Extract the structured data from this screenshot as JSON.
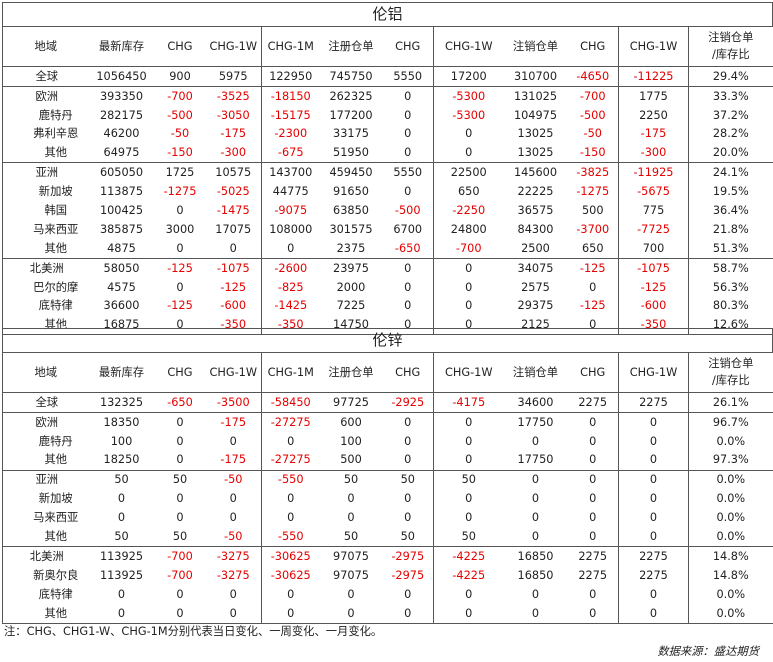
{
  "headers": {
    "region": "地域",
    "inventory": "最新库存",
    "chg": "CHG",
    "chg1w": "CHG-1W",
    "chg1m": "CHG-1M",
    "registered": "注册仓单",
    "cancelled": "注销仓单",
    "ratio_line1": "注销仓单",
    "ratio_line2": "/库存比"
  },
  "sections": [
    {
      "title": "伦铝",
      "rows": [
        {
          "region": "全球",
          "level": "top",
          "inv": "1056450",
          "chg": "900",
          "chg1w": "5975",
          "chg1m": "122950",
          "reg": "745750",
          "reg_chg": "5550",
          "reg_chg1w": "17200",
          "can": "310700",
          "can_chg": "-4650",
          "can_chg1w": "-11225",
          "ratio": "29.4%"
        },
        {
          "region": "欧洲",
          "level": "top",
          "inv": "393350",
          "chg": "-700",
          "chg1w": "-3525",
          "chg1m": "-18150",
          "reg": "262325",
          "reg_chg": "0",
          "reg_chg1w": "-5300",
          "can": "131025",
          "can_chg": "-700",
          "can_chg1w": "1775",
          "ratio": "33.3%"
        },
        {
          "region": "鹿特丹",
          "level": "sub",
          "inv": "282175",
          "chg": "-500",
          "chg1w": "-3050",
          "chg1m": "-15175",
          "reg": "177200",
          "reg_chg": "0",
          "reg_chg1w": "-5300",
          "can": "104975",
          "can_chg": "-500",
          "can_chg1w": "2250",
          "ratio": "37.2%"
        },
        {
          "region": "弗利辛恩",
          "level": "sub",
          "inv": "46200",
          "chg": "-50",
          "chg1w": "-175",
          "chg1m": "-2300",
          "reg": "33175",
          "reg_chg": "0",
          "reg_chg1w": "0",
          "can": "13025",
          "can_chg": "-50",
          "can_chg1w": "-175",
          "ratio": "28.2%"
        },
        {
          "region": "其他",
          "level": "sub",
          "inv": "64975",
          "chg": "-150",
          "chg1w": "-300",
          "chg1m": "-675",
          "reg": "51950",
          "reg_chg": "0",
          "reg_chg1w": "0",
          "can": "13025",
          "can_chg": "-150",
          "can_chg1w": "-300",
          "ratio": "20.0%"
        },
        {
          "region": "亚洲",
          "level": "top",
          "inv": "605050",
          "chg": "1725",
          "chg1w": "10575",
          "chg1m": "143700",
          "reg": "459450",
          "reg_chg": "5550",
          "reg_chg1w": "22500",
          "can": "145600",
          "can_chg": "-3825",
          "can_chg1w": "-11925",
          "ratio": "24.1%"
        },
        {
          "region": "新加坡",
          "level": "sub",
          "inv": "113875",
          "chg": "-1275",
          "chg1w": "-5025",
          "chg1m": "44775",
          "reg": "91650",
          "reg_chg": "0",
          "reg_chg1w": "650",
          "can": "22225",
          "can_chg": "-1275",
          "can_chg1w": "-5675",
          "ratio": "19.5%"
        },
        {
          "region": "韩国",
          "level": "sub",
          "inv": "100425",
          "chg": "0",
          "chg1w": "-1475",
          "chg1m": "-9075",
          "reg": "63850",
          "reg_chg": "-500",
          "reg_chg1w": "-2250",
          "can": "36575",
          "can_chg": "500",
          "can_chg1w": "775",
          "ratio": "36.4%"
        },
        {
          "region": "马来西亚",
          "level": "sub",
          "inv": "385875",
          "chg": "3000",
          "chg1w": "17075",
          "chg1m": "108000",
          "reg": "301575",
          "reg_chg": "6700",
          "reg_chg1w": "24800",
          "can": "84300",
          "can_chg": "-3700",
          "can_chg1w": "-7725",
          "ratio": "21.8%"
        },
        {
          "region": "其他",
          "level": "sub",
          "inv": "4875",
          "chg": "0",
          "chg1w": "0",
          "chg1m": "0",
          "reg": "2375",
          "reg_chg": "-650",
          "reg_chg1w": "-700",
          "can": "2500",
          "can_chg": "650",
          "can_chg1w": "700",
          "ratio": "51.3%"
        },
        {
          "region": "北美洲",
          "level": "top",
          "inv": "58050",
          "chg": "-125",
          "chg1w": "-1075",
          "chg1m": "-2600",
          "reg": "23975",
          "reg_chg": "0",
          "reg_chg1w": "0",
          "can": "34075",
          "can_chg": "-125",
          "can_chg1w": "-1075",
          "ratio": "58.7%"
        },
        {
          "region": "巴尔的摩",
          "level": "sub",
          "inv": "4575",
          "chg": "0",
          "chg1w": "-125",
          "chg1m": "-825",
          "reg": "2000",
          "reg_chg": "0",
          "reg_chg1w": "0",
          "can": "2575",
          "can_chg": "0",
          "can_chg1w": "-125",
          "ratio": "56.3%"
        },
        {
          "region": "底特律",
          "level": "sub",
          "inv": "36600",
          "chg": "-125",
          "chg1w": "-600",
          "chg1m": "-1425",
          "reg": "7225",
          "reg_chg": "0",
          "reg_chg1w": "0",
          "can": "29375",
          "can_chg": "-125",
          "can_chg1w": "-600",
          "ratio": "80.3%"
        },
        {
          "region": "其他",
          "level": "sub",
          "inv": "16875",
          "chg": "0",
          "chg1w": "-350",
          "chg1m": "-350",
          "reg": "14750",
          "reg_chg": "0",
          "reg_chg1w": "0",
          "can": "2125",
          "can_chg": "0",
          "can_chg1w": "-350",
          "ratio": "12.6%"
        }
      ]
    },
    {
      "title": "伦锌",
      "rows": [
        {
          "region": "全球",
          "level": "top",
          "inv": "132325",
          "chg": "-650",
          "chg1w": "-3500",
          "chg1m": "-58450",
          "reg": "97725",
          "reg_chg": "-2925",
          "reg_chg1w": "-4175",
          "can": "34600",
          "can_chg": "2275",
          "can_chg1w": "2275",
          "ratio": "26.1%"
        },
        {
          "region": "欧洲",
          "level": "top",
          "inv": "18350",
          "chg": "0",
          "chg1w": "-175",
          "chg1m": "-27275",
          "reg": "600",
          "reg_chg": "0",
          "reg_chg1w": "0",
          "can": "17750",
          "can_chg": "0",
          "can_chg1w": "0",
          "ratio": "96.7%"
        },
        {
          "region": "鹿特丹",
          "level": "sub",
          "inv": "100",
          "chg": "0",
          "chg1w": "0",
          "chg1m": "0",
          "reg": "100",
          "reg_chg": "0",
          "reg_chg1w": "0",
          "can": "0",
          "can_chg": "0",
          "can_chg1w": "0",
          "ratio": "0.0%"
        },
        {
          "region": "其他",
          "level": "sub",
          "inv": "18250",
          "chg": "0",
          "chg1w": "-175",
          "chg1m": "-27275",
          "reg": "500",
          "reg_chg": "0",
          "reg_chg1w": "0",
          "can": "17750",
          "can_chg": "0",
          "can_chg1w": "0",
          "ratio": "97.3%"
        },
        {
          "region": "亚洲",
          "level": "top",
          "inv": "50",
          "chg": "50",
          "chg1w": "-50",
          "chg1m": "-550",
          "reg": "50",
          "reg_chg": "50",
          "reg_chg1w": "50",
          "can": "0",
          "can_chg": "0",
          "can_chg1w": "0",
          "ratio": "0.0%"
        },
        {
          "region": "新加坡",
          "level": "sub",
          "inv": "0",
          "chg": "0",
          "chg1w": "0",
          "chg1m": "0",
          "reg": "0",
          "reg_chg": "0",
          "reg_chg1w": "0",
          "can": "0",
          "can_chg": "0",
          "can_chg1w": "0",
          "ratio": "0.0%"
        },
        {
          "region": "马来西亚",
          "level": "sub",
          "inv": "0",
          "chg": "0",
          "chg1w": "0",
          "chg1m": "0",
          "reg": "0",
          "reg_chg": "0",
          "reg_chg1w": "0",
          "can": "0",
          "can_chg": "0",
          "can_chg1w": "0",
          "ratio": "0.0%"
        },
        {
          "region": "其他",
          "level": "sub",
          "inv": "50",
          "chg": "50",
          "chg1w": "-50",
          "chg1m": "-550",
          "reg": "50",
          "reg_chg": "50",
          "reg_chg1w": "50",
          "can": "0",
          "can_chg": "0",
          "can_chg1w": "0",
          "ratio": "0.0%"
        },
        {
          "region": "北美洲",
          "level": "top",
          "inv": "113925",
          "chg": "-700",
          "chg1w": "-3275",
          "chg1m": "-30625",
          "reg": "97075",
          "reg_chg": "-2975",
          "reg_chg1w": "-4225",
          "can": "16850",
          "can_chg": "2275",
          "can_chg1w": "2275",
          "ratio": "14.8%"
        },
        {
          "region": "新奥尔良",
          "level": "sub",
          "inv": "113925",
          "chg": "-700",
          "chg1w": "-3275",
          "chg1m": "-30625",
          "reg": "97075",
          "reg_chg": "-2975",
          "reg_chg1w": "-4225",
          "can": "16850",
          "can_chg": "2275",
          "can_chg1w": "2275",
          "ratio": "14.8%"
        },
        {
          "region": "底特律",
          "level": "sub",
          "inv": "0",
          "chg": "0",
          "chg1w": "0",
          "chg1m": "0",
          "reg": "0",
          "reg_chg": "0",
          "reg_chg1w": "0",
          "can": "0",
          "can_chg": "0",
          "can_chg1w": "0",
          "ratio": "0.0%"
        },
        {
          "region": "其他",
          "level": "sub",
          "inv": "0",
          "chg": "0",
          "chg1w": "0",
          "chg1m": "0",
          "reg": "0",
          "reg_chg": "0",
          "reg_chg1w": "0",
          "can": "0",
          "can_chg": "0",
          "can_chg1w": "0",
          "ratio": "0.0%"
        }
      ]
    }
  ],
  "colors": {
    "negative": "#e60000",
    "text": "#222222",
    "border": "#555555"
  },
  "footer": {
    "note": "注：CHG、CHG1-W、CHG-1M分别代表当日变化、一周变化、一月变化。",
    "source": "数据来源：盛达期货"
  }
}
